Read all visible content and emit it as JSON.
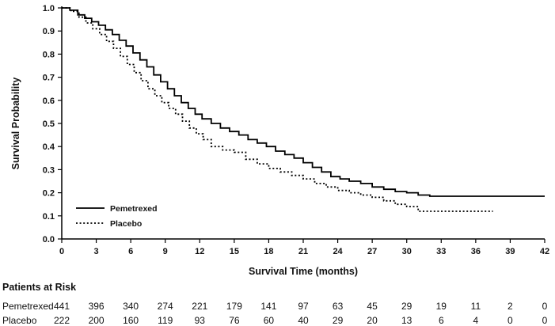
{
  "chart_data": {
    "type": "line",
    "subtype": "kaplan-meier-step",
    "title": "",
    "xlabel": "Survival Time (months)",
    "ylabel": "Survival Probability",
    "xlim": [
      0,
      42
    ],
    "ylim": [
      0.0,
      1.0
    ],
    "xticks": [
      0,
      3,
      6,
      9,
      12,
      15,
      18,
      21,
      24,
      27,
      30,
      33,
      36,
      39,
      42
    ],
    "yticks": [
      0.0,
      0.1,
      0.2,
      0.3,
      0.4,
      0.5,
      0.6,
      0.7,
      0.8,
      0.9,
      1.0
    ],
    "grid": false,
    "legend": {
      "position": "lower-left"
    },
    "series": [
      {
        "name": "Pemetrexed",
        "style": "solid",
        "x": [
          0,
          0.7,
          1.4,
          2,
          2.6,
          3.2,
          3.8,
          4.4,
          5,
          5.6,
          6.2,
          6.8,
          7.4,
          8,
          8.6,
          9.2,
          9.8,
          10.4,
          11,
          11.6,
          12.2,
          13,
          13.8,
          14.6,
          15.4,
          16.2,
          17,
          17.8,
          18.6,
          19.4,
          20.2,
          21,
          21.8,
          22.6,
          23.4,
          24.2,
          25,
          26,
          27,
          28,
          29,
          30,
          31,
          32,
          42
        ],
        "y": [
          1.0,
          0.99,
          0.97,
          0.955,
          0.94,
          0.925,
          0.905,
          0.885,
          0.86,
          0.835,
          0.805,
          0.775,
          0.745,
          0.71,
          0.68,
          0.65,
          0.62,
          0.59,
          0.565,
          0.54,
          0.52,
          0.5,
          0.48,
          0.465,
          0.45,
          0.43,
          0.415,
          0.4,
          0.38,
          0.365,
          0.35,
          0.33,
          0.31,
          0.29,
          0.27,
          0.26,
          0.25,
          0.24,
          0.225,
          0.215,
          0.205,
          0.2,
          0.19,
          0.185,
          0.185
        ]
      },
      {
        "name": "Placebo",
        "style": "dotted",
        "x": [
          0,
          0.8,
          1.5,
          2.1,
          2.7,
          3.3,
          3.9,
          4.5,
          5.1,
          5.7,
          6.3,
          6.9,
          7.5,
          8.1,
          8.7,
          9.3,
          9.9,
          10.5,
          11.1,
          11.7,
          12.3,
          13,
          14,
          15,
          16,
          17,
          18,
          19,
          20,
          21,
          22,
          23,
          24,
          25,
          26,
          27,
          28,
          29,
          30,
          31,
          37.5
        ],
        "y": [
          1.0,
          0.985,
          0.96,
          0.935,
          0.91,
          0.885,
          0.855,
          0.825,
          0.79,
          0.755,
          0.72,
          0.685,
          0.65,
          0.62,
          0.59,
          0.565,
          0.54,
          0.51,
          0.48,
          0.455,
          0.43,
          0.4,
          0.385,
          0.375,
          0.345,
          0.325,
          0.305,
          0.29,
          0.275,
          0.26,
          0.24,
          0.225,
          0.21,
          0.2,
          0.19,
          0.18,
          0.165,
          0.15,
          0.14,
          0.12,
          0.12
        ]
      }
    ]
  },
  "risk_table": {
    "title": "Patients at Risk",
    "times": [
      0,
      3,
      6,
      9,
      12,
      15,
      18,
      21,
      24,
      27,
      30,
      33,
      36,
      39,
      42
    ],
    "rows": [
      {
        "label": "Pemetrexed",
        "counts": [
          "441",
          "396",
          "340",
          "274",
          "221",
          "179",
          "141",
          "97",
          "63",
          "45",
          "29",
          "19",
          "11",
          "2",
          "0"
        ]
      },
      {
        "label": "Placebo",
        "counts": [
          "222",
          "200",
          "160",
          "119",
          "93",
          "76",
          "60",
          "40",
          "29",
          "20",
          "13",
          "6",
          "4",
          "0",
          "0"
        ]
      }
    ]
  },
  "colors": {
    "line": "#000000",
    "text": "#111111",
    "background": "#ffffff"
  }
}
